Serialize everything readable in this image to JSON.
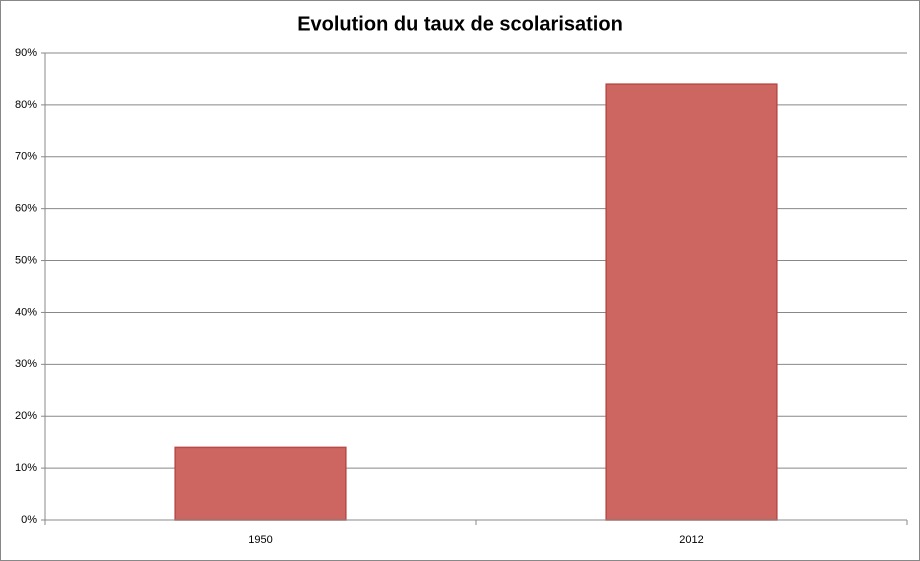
{
  "chart_data": {
    "type": "bar",
    "title": "Evolution du taux de scolarisation",
    "categories": [
      "1950",
      "2012"
    ],
    "values": [
      14,
      84
    ],
    "color": "#cd6561",
    "ylim": [
      0,
      90
    ],
    "yticks": [
      {
        "value": 0,
        "label": "0%"
      },
      {
        "value": 10,
        "label": "10%"
      },
      {
        "value": 20,
        "label": "20%"
      },
      {
        "value": 30,
        "label": "30%"
      },
      {
        "value": 40,
        "label": "40%"
      },
      {
        "value": 50,
        "label": "50%"
      },
      {
        "value": 60,
        "label": "60%"
      },
      {
        "value": 70,
        "label": "70%"
      },
      {
        "value": 80,
        "label": "80%"
      },
      {
        "value": 90,
        "label": "90%"
      }
    ],
    "grid": true
  }
}
